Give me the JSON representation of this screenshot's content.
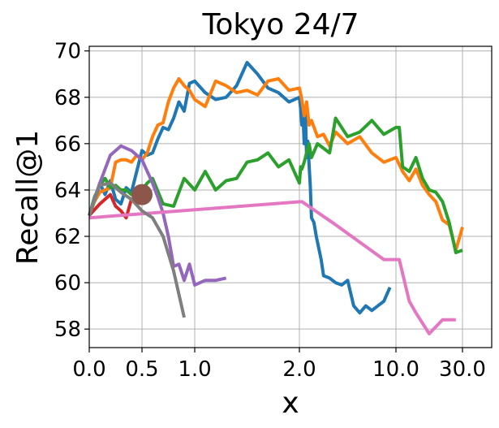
{
  "chart_data": {
    "type": "line",
    "title": "Tokyo 24/7",
    "xlabel": "x",
    "ylabel": "Recall@1",
    "x_scale": "piecewise",
    "x_tick_labels": [
      "0.0",
      "0.5",
      "1.0",
      "2.0",
      "10.0",
      "30.0"
    ],
    "x_tick_values": [
      0,
      0.5,
      1.0,
      2.0,
      10.0,
      30.0
    ],
    "xlim": [
      0,
      35
    ],
    "ylim": [
      57.2,
      70.2
    ],
    "y_ticks": [
      58,
      60,
      62,
      64,
      66,
      68,
      70
    ],
    "grid": true,
    "legend": "none",
    "series": [
      {
        "color": "#1f77b4",
        "x": [
          0,
          0.05,
          0.1,
          0.15,
          0.2,
          0.25,
          0.3,
          0.35,
          0.4,
          0.45,
          0.5,
          0.55,
          0.6,
          0.65,
          0.7,
          0.75,
          0.8,
          0.85,
          0.9,
          0.95,
          1.0,
          1.1,
          1.2,
          1.3,
          1.4,
          1.5,
          1.6,
          1.7,
          1.8,
          1.9,
          2.0,
          2.1,
          2.2,
          2.3,
          2.4,
          2.5,
          2.6,
          2.7,
          2.8,
          2.9,
          3.0,
          3.2,
          3.4,
          3.6,
          3.8,
          4.0,
          4.5,
          5.0,
          5.5,
          6.0,
          6.5,
          7.0,
          7.5,
          8.0,
          8.5,
          9.0,
          9.5
        ],
        "y": [
          62.9,
          63.6,
          64.3,
          63.8,
          64.4,
          63.6,
          63.4,
          64.1,
          63.9,
          64.8,
          65.7,
          65.5,
          65.6,
          66.2,
          66.7,
          66.6,
          67.1,
          67.8,
          67.4,
          68.6,
          68.7,
          68.2,
          67.9,
          68.0,
          68.5,
          69.5,
          69.0,
          68.4,
          68.2,
          67.8,
          68.0,
          67.5,
          66.8,
          67.2,
          66.0,
          67.3,
          65.4,
          66.1,
          65.1,
          64.2,
          62.8,
          62.6,
          62.0,
          61.5,
          61.0,
          60.3,
          60.2,
          60.0,
          59.9,
          60.1,
          59.0,
          58.7,
          59.0,
          58.8,
          59.0,
          59.2,
          59.8
        ]
      },
      {
        "color": "#ff7f0e",
        "x": [
          0,
          0.05,
          0.1,
          0.15,
          0.2,
          0.25,
          0.3,
          0.35,
          0.4,
          0.45,
          0.5,
          0.55,
          0.6,
          0.65,
          0.7,
          0.75,
          0.8,
          0.85,
          0.9,
          0.95,
          1.0,
          1.1,
          1.2,
          1.3,
          1.4,
          1.5,
          1.6,
          1.7,
          1.8,
          1.9,
          2.0,
          2.2,
          2.4,
          2.6,
          2.8,
          3.0,
          3.5,
          4.0,
          4.5,
          5.0,
          6.0,
          7.0,
          8.0,
          9.0,
          10.0,
          12.0,
          14.0,
          16.0,
          18.0,
          20.0,
          22.0,
          24.0,
          26.0,
          28.0,
          30.0
        ],
        "y": [
          62.9,
          63.5,
          63.9,
          64.0,
          64.1,
          65.2,
          65.3,
          65.3,
          65.2,
          65.5,
          65.3,
          65.6,
          66.3,
          66.8,
          66.9,
          67.8,
          68.4,
          68.8,
          68.5,
          68.3,
          67.9,
          67.6,
          68.7,
          68.5,
          68.2,
          68.3,
          68.1,
          68.7,
          68.8,
          68.3,
          68.4,
          67.9,
          67.2,
          67.8,
          66.8,
          67.0,
          66.3,
          66.4,
          65.9,
          66.5,
          66.0,
          66.3,
          65.6,
          65.2,
          65.4,
          64.8,
          64.4,
          64.9,
          64.2,
          63.8,
          63.5,
          62.7,
          62.5,
          61.4,
          62.4
        ]
      },
      {
        "color": "#2ca02c",
        "x": [
          0,
          0.05,
          0.1,
          0.15,
          0.2,
          0.25,
          0.3,
          0.35,
          0.4,
          0.45,
          0.5,
          0.55,
          0.6,
          0.7,
          0.8,
          0.9,
          1.0,
          1.1,
          1.2,
          1.3,
          1.4,
          1.5,
          1.6,
          1.7,
          1.8,
          1.9,
          2.0,
          2.1,
          2.2,
          2.4,
          2.6,
          2.8,
          3.0,
          3.5,
          4.0,
          4.5,
          5.0,
          6.0,
          7.0,
          8.0,
          9.0,
          10.0,
          11.0,
          12.0,
          14.0,
          16.0,
          18.0,
          20.0,
          22.0,
          24.0,
          26.0,
          28.0,
          30.0
        ],
        "y": [
          62.9,
          63.7,
          64.2,
          64.5,
          64.1,
          64.2,
          64.0,
          64.0,
          63.8,
          63.8,
          64.0,
          64.3,
          64.5,
          63.4,
          63.3,
          64.5,
          64.0,
          64.8,
          64.0,
          64.4,
          64.5,
          65.2,
          65.3,
          65.6,
          65.0,
          65.3,
          64.3,
          65.0,
          64.9,
          65.2,
          65.6,
          66.0,
          65.4,
          66.0,
          65.8,
          65.6,
          67.1,
          66.3,
          66.5,
          67.0,
          66.4,
          66.7,
          66.7,
          65.0,
          64.8,
          65.4,
          64.5,
          64.0,
          63.9,
          63.5,
          62.6,
          61.3,
          61.4
        ]
      },
      {
        "color": "#d62728",
        "x": [
          0,
          0.1,
          0.2,
          0.25,
          0.3,
          0.35,
          0.4,
          0.45,
          0.5
        ],
        "y": [
          62.9,
          63.4,
          63.8,
          63.3,
          63.1,
          62.8,
          63.6,
          63.5,
          63.8
        ]
      },
      {
        "color": "#9467bd",
        "x": [
          0,
          0.1,
          0.2,
          0.3,
          0.4,
          0.5,
          0.55,
          0.6,
          0.65,
          0.7,
          0.75,
          0.8,
          0.85,
          0.9,
          0.95,
          1.0,
          1.1,
          1.2,
          1.3
        ],
        "y": [
          62.9,
          64.3,
          65.5,
          65.9,
          65.7,
          65.3,
          64.8,
          64.3,
          63.7,
          63.0,
          62.0,
          60.7,
          60.8,
          60.1,
          60.8,
          59.9,
          60.1,
          60.1,
          60.2
        ]
      },
      {
        "color": "#8c564b",
        "x": [
          0.5
        ],
        "y": [
          63.8
        ],
        "marker": "circle"
      },
      {
        "color": "#e377c2",
        "x": [
          0,
          2.2,
          5.0,
          9.0,
          11.0,
          14.0,
          16.0,
          20.0,
          24.0,
          26.0,
          28.0
        ],
        "y": [
          62.8,
          63.5,
          62.5,
          61.0,
          61.0,
          59.2,
          58.7,
          57.8,
          58.4,
          58.4,
          58.4
        ]
      },
      {
        "color": "#7f7f7f",
        "x": [
          0,
          0.1,
          0.2,
          0.3,
          0.4,
          0.5,
          0.6,
          0.7,
          0.8,
          0.9
        ],
        "y": [
          62.9,
          64.2,
          64.3,
          63.9,
          63.6,
          63.1,
          62.8,
          62.0,
          60.5,
          58.5
        ]
      }
    ]
  }
}
